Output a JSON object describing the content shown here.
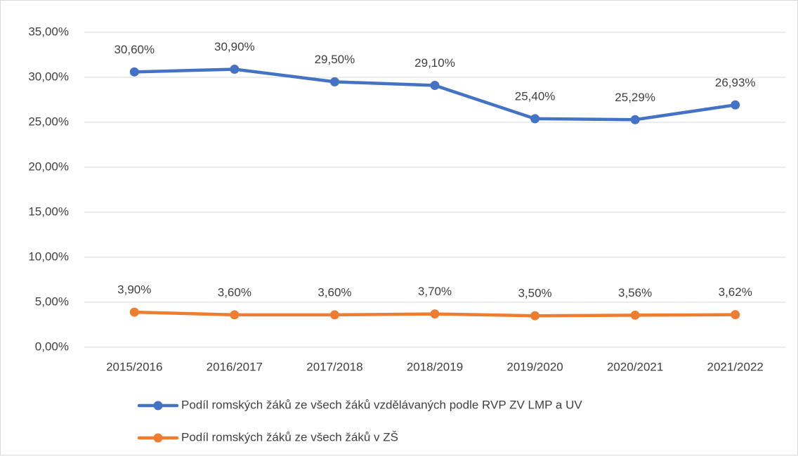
{
  "chart_data": {
    "type": "line",
    "categories": [
      "2015/2016",
      "2016/2017",
      "2017/2018",
      "2018/2019",
      "2019/2020",
      "2020/2021",
      "2021/2022"
    ],
    "series": [
      {
        "name": "Podíl romských žáků ze všech žáků vzdělávaných podle RVP ZV LMP a UV",
        "color": "#4472c4",
        "values": [
          30.6,
          30.9,
          29.5,
          29.1,
          25.4,
          25.29,
          26.93
        ],
        "value_labels": [
          "30,60%",
          "30,90%",
          "29,50%",
          "29,10%",
          "25,40%",
          "25,29%",
          "26,93%"
        ]
      },
      {
        "name": "Podíl romských žáků ze všech žáků v ZŠ",
        "color": "#ed7d31",
        "values": [
          3.9,
          3.6,
          3.6,
          3.7,
          3.5,
          3.56,
          3.62
        ],
        "value_labels": [
          "3,90%",
          "3,60%",
          "3,60%",
          "3,70%",
          "3,50%",
          "3,56%",
          "3,62%"
        ]
      }
    ],
    "ylim": [
      0,
      35
    ],
    "yticks": [
      {
        "value": 0,
        "label": "0,00%"
      },
      {
        "value": 5,
        "label": "5,00%"
      },
      {
        "value": 10,
        "label": "10,00%"
      },
      {
        "value": 15,
        "label": "15,00%"
      },
      {
        "value": 20,
        "label": "20,00%"
      },
      {
        "value": 25,
        "label": "25,00%"
      },
      {
        "value": 30,
        "label": "30,00%"
      },
      {
        "value": 35,
        "label": "35,00%"
      }
    ],
    "grid": true,
    "legend": "bottom"
  }
}
